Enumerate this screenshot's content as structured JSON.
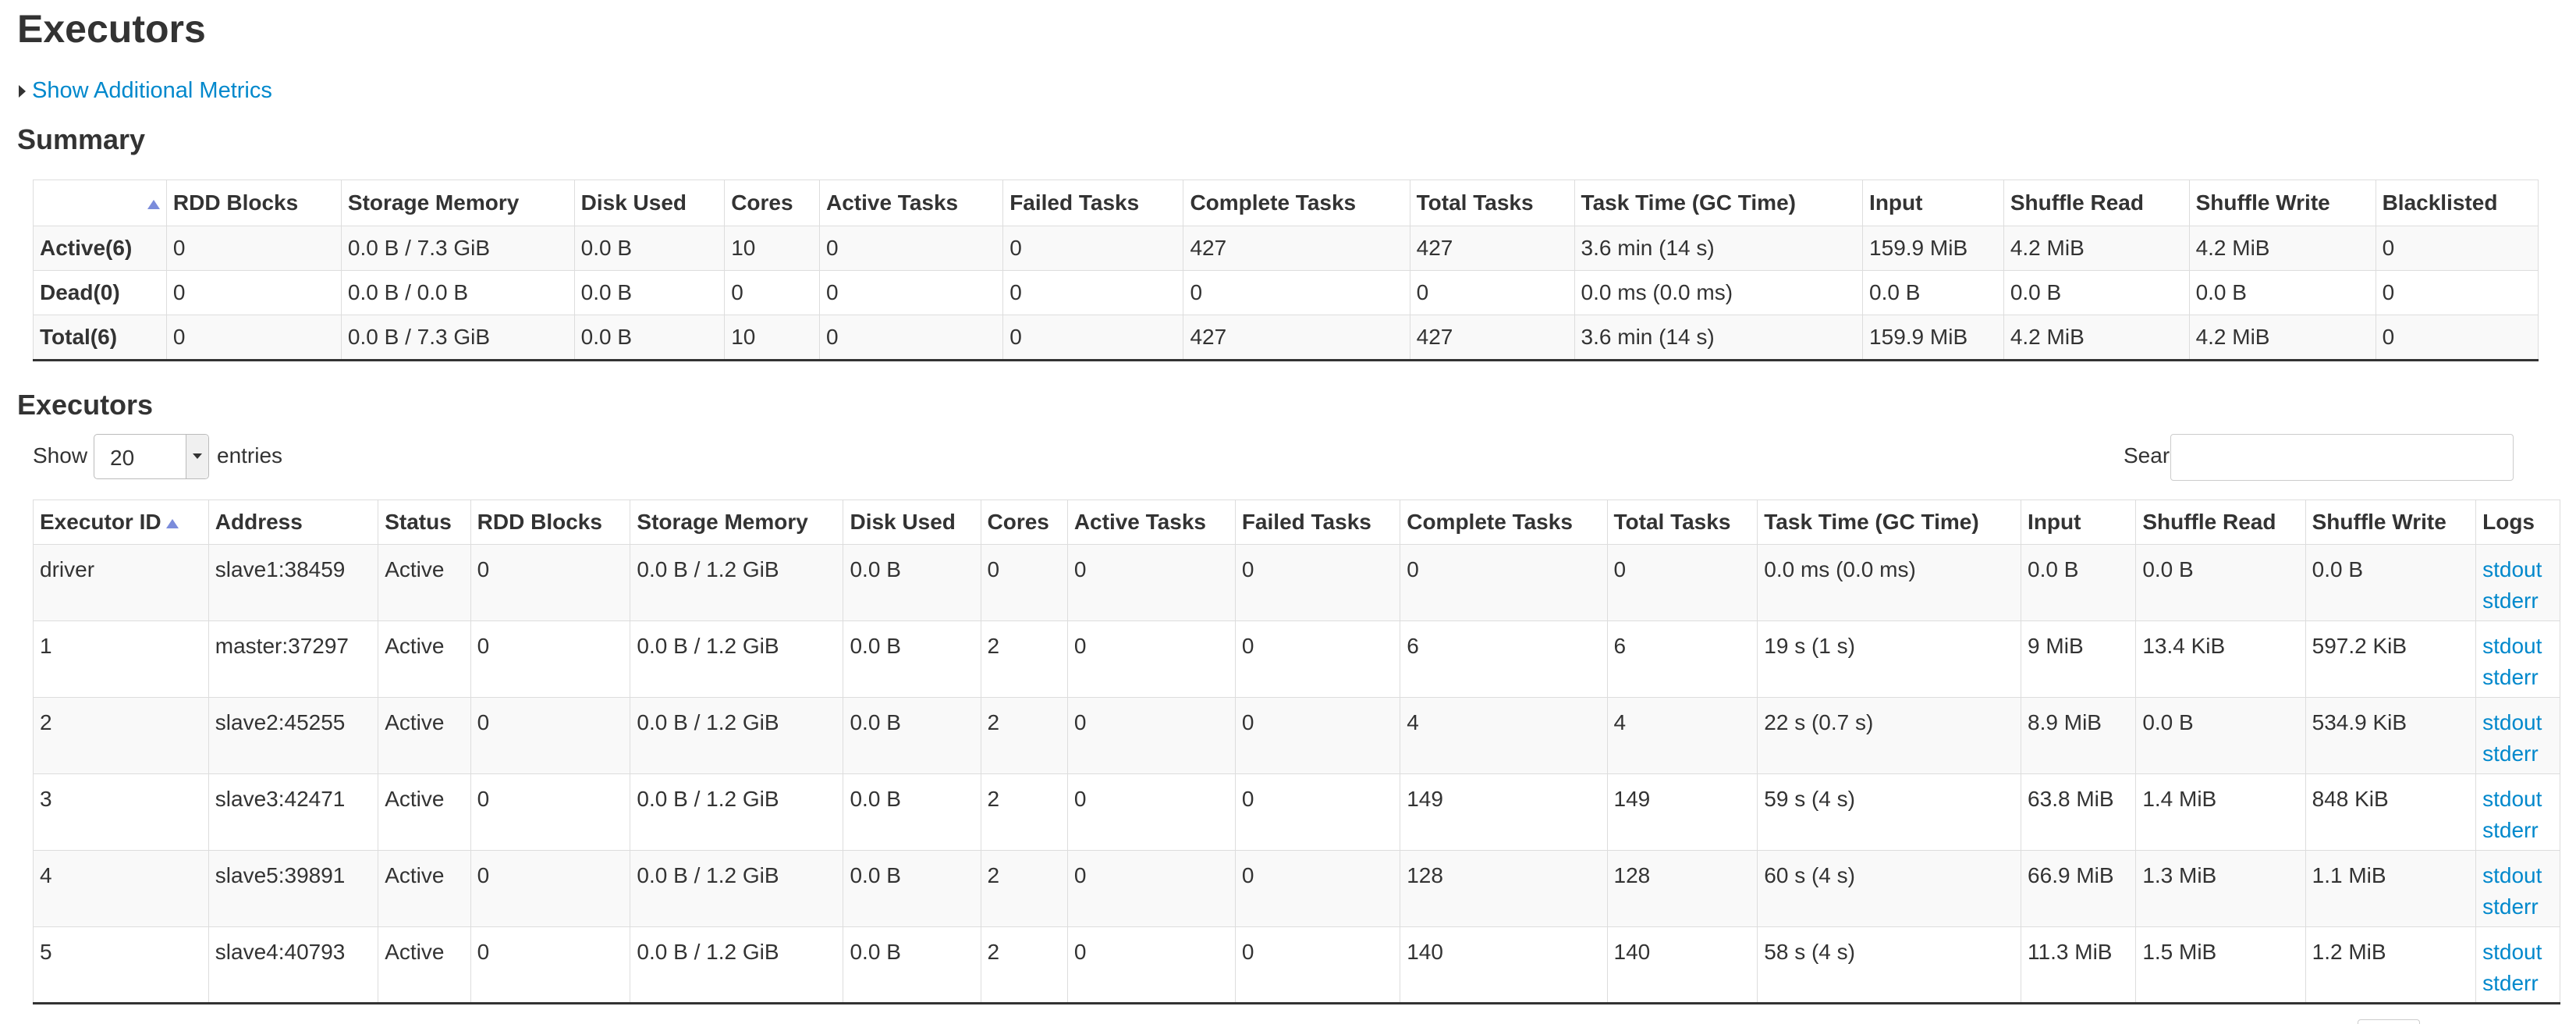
{
  "page": {
    "title": "Executors",
    "metrics_toggle": "Show Additional Metrics"
  },
  "summary": {
    "heading": "Summary",
    "columns": [
      "",
      "RDD Blocks",
      "Storage Memory",
      "Disk Used",
      "Cores",
      "Active Tasks",
      "Failed Tasks",
      "Complete Tasks",
      "Total Tasks",
      "Task Time (GC Time)",
      "Input",
      "Shuffle Read",
      "Shuffle Write",
      "Blacklisted"
    ],
    "rows": [
      [
        "Active(6)",
        "0",
        "0.0 B / 7.3 GiB",
        "0.0 B",
        "10",
        "0",
        "0",
        "427",
        "427",
        "3.6 min (14 s)",
        "159.9 MiB",
        "4.2 MiB",
        "4.2 MiB",
        "0"
      ],
      [
        "Dead(0)",
        "0",
        "0.0 B / 0.0 B",
        "0.0 B",
        "0",
        "0",
        "0",
        "0",
        "0",
        "0.0 ms (0.0 ms)",
        "0.0 B",
        "0.0 B",
        "0.0 B",
        "0"
      ],
      [
        "Total(6)",
        "0",
        "0.0 B / 7.3 GiB",
        "0.0 B",
        "10",
        "0",
        "0",
        "427",
        "427",
        "3.6 min (14 s)",
        "159.9 MiB",
        "4.2 MiB",
        "4.2 MiB",
        "0"
      ]
    ]
  },
  "executors": {
    "heading": "Executors",
    "show_label": "Show",
    "page_length": "20",
    "entries_label": "entries",
    "search_label": "Search:",
    "search_value": "",
    "columns": [
      "Executor ID",
      "Address",
      "Status",
      "RDD Blocks",
      "Storage Memory",
      "Disk Used",
      "Cores",
      "Active Tasks",
      "Failed Tasks",
      "Complete Tasks",
      "Total Tasks",
      "Task Time (GC Time)",
      "Input",
      "Shuffle Read",
      "Shuffle Write",
      "Logs"
    ],
    "rows": [
      [
        "driver",
        "slave1:38459",
        "Active",
        "0",
        "0.0 B / 1.2 GiB",
        "0.0 B",
        "0",
        "0",
        "0",
        "0",
        "0",
        "0.0 ms (0.0 ms)",
        "0.0 B",
        "0.0 B",
        "0.0 B"
      ],
      [
        "1",
        "master:37297",
        "Active",
        "0",
        "0.0 B / 1.2 GiB",
        "0.0 B",
        "2",
        "0",
        "0",
        "6",
        "6",
        "19 s (1 s)",
        "9 MiB",
        "13.4 KiB",
        "597.2 KiB"
      ],
      [
        "2",
        "slave2:45255",
        "Active",
        "0",
        "0.0 B / 1.2 GiB",
        "0.0 B",
        "2",
        "0",
        "0",
        "4",
        "4",
        "22 s (0.7 s)",
        "8.9 MiB",
        "0.0 B",
        "534.9 KiB"
      ],
      [
        "3",
        "slave3:42471",
        "Active",
        "0",
        "0.0 B / 1.2 GiB",
        "0.0 B",
        "2",
        "0",
        "0",
        "149",
        "149",
        "59 s (4 s)",
        "63.8 MiB",
        "1.4 MiB",
        "848 KiB"
      ],
      [
        "4",
        "slave5:39891",
        "Active",
        "0",
        "0.0 B / 1.2 GiB",
        "0.0 B",
        "2",
        "0",
        "0",
        "128",
        "128",
        "60 s (4 s)",
        "66.9 MiB",
        "1.3 MiB",
        "1.1 MiB"
      ],
      [
        "5",
        "slave4:40793",
        "Active",
        "0",
        "0.0 B / 1.2 GiB",
        "0.0 B",
        "2",
        "0",
        "0",
        "140",
        "140",
        "58 s (4 s)",
        "11.3 MiB",
        "1.5 MiB",
        "1.2 MiB"
      ]
    ],
    "log_links": [
      "stdout",
      "stderr"
    ]
  },
  "colors": {
    "link": "#0088cc",
    "sort_arrow": "#7b8cdb",
    "row_stripe": "#f9f9f9",
    "border": "#dddddd"
  }
}
